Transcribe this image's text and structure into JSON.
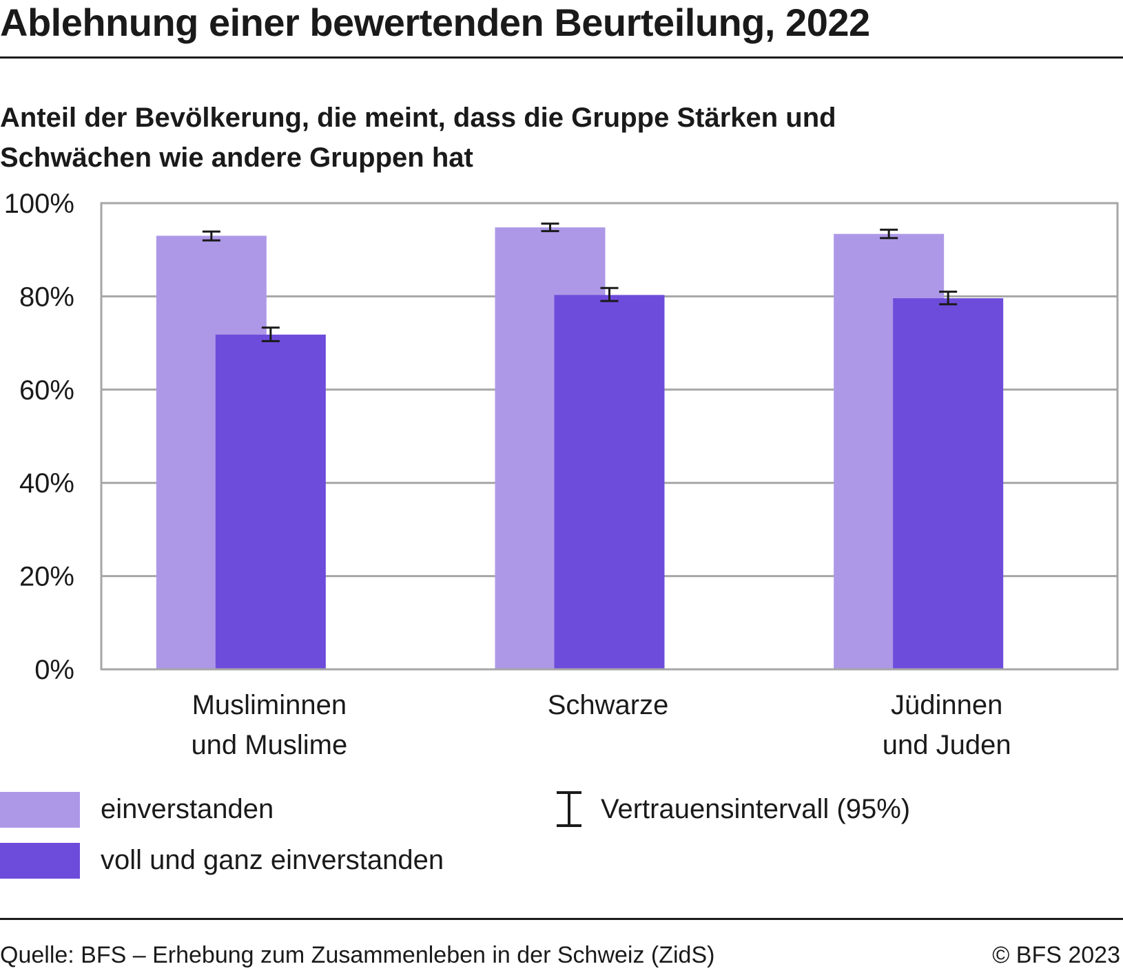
{
  "title": "Ablehnung einer bewertenden Beurteilung, 2022",
  "subtitle": "Anteil der Bevölkerung, die meint, dass die Gruppe Stärken und Schwächen wie andere Gruppen hat",
  "legend": {
    "series1": "einverstanden",
    "series2": "voll und ganz einverstanden",
    "ci": "Vertrauensintervall (95%)"
  },
  "footer": {
    "source": "Quelle: BFS – Erhebung zum Zusammenleben in der Schweiz (ZidS)",
    "copyright": "© BFS 2023"
  },
  "colors": {
    "series1": "#ad98e8",
    "series2": "#6e4cdb",
    "grid": "#a6a6a6",
    "error_bar": "#1a1a1a"
  },
  "chart_data": {
    "type": "bar",
    "categories": [
      [
        "Musliminnen",
        "und Muslime"
      ],
      [
        "Schwarze"
      ],
      [
        "Jüdinnen",
        "und Juden"
      ]
    ],
    "series": [
      {
        "name": "einverstanden",
        "values": [
          93.0,
          94.8,
          93.4
        ],
        "ci_low": [
          92.0,
          94.0,
          92.5
        ],
        "ci_high": [
          93.9,
          95.6,
          94.3
        ]
      },
      {
        "name": "voll und ganz einverstanden",
        "values": [
          71.8,
          80.3,
          79.6
        ],
        "ci_low": [
          70.4,
          79.0,
          78.3
        ],
        "ci_high": [
          73.3,
          81.8,
          81.0
        ]
      }
    ],
    "ylim": [
      0,
      100
    ],
    "yticks": [
      "0%",
      "20%",
      "40%",
      "60%",
      "80%",
      "100%"
    ],
    "grid": true,
    "legend_position": "bottom"
  }
}
